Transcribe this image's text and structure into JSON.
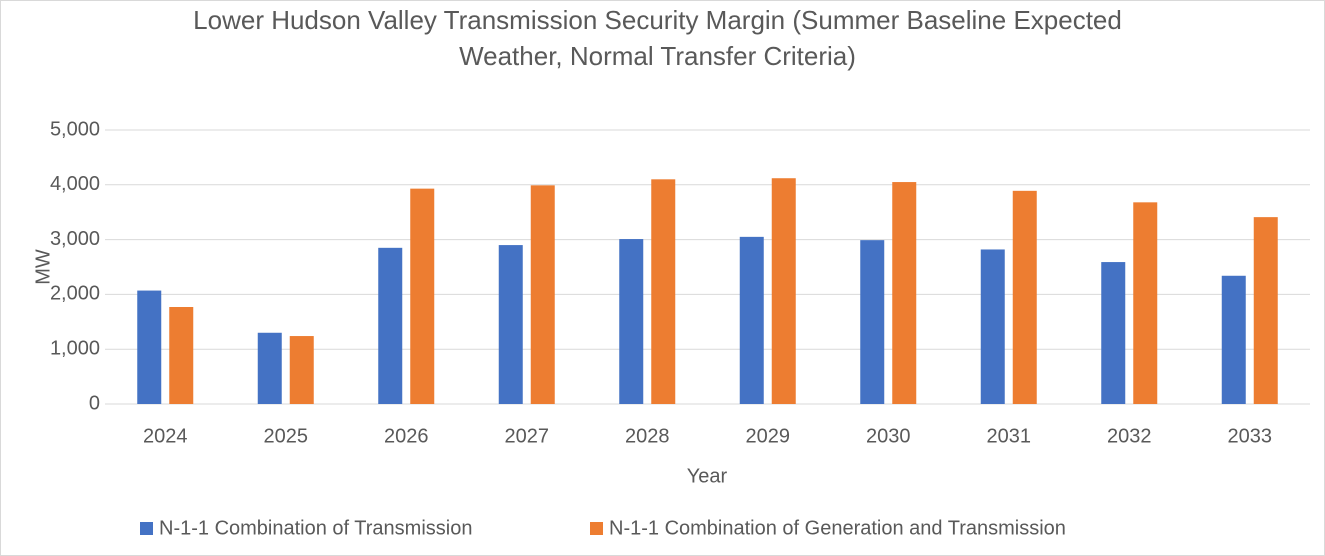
{
  "chart_data": {
    "type": "bar",
    "title": "Lower Hudson Valley Transmission Security Margin (Summer Baseline Expected Weather, Normal Transfer Criteria)",
    "x_label": "Year",
    "y_label": "MW",
    "categories": [
      "2024",
      "2025",
      "2026",
      "2027",
      "2028",
      "2029",
      "2030",
      "2031",
      "2032",
      "2033"
    ],
    "series": [
      {
        "name": "N-1-1 Combination of Transmission",
        "color": "#4472c4",
        "values": [
          2070,
          1300,
          2850,
          2900,
          3010,
          3050,
          2990,
          2820,
          2590,
          2340
        ]
      },
      {
        "name": "N-1-1 Combination of Generation and Transmission",
        "color": "#ed7d31",
        "values": [
          1770,
          1240,
          3930,
          3990,
          4100,
          4120,
          4050,
          3890,
          3680,
          3410
        ]
      }
    ],
    "ylim": [
      0,
      5000
    ],
    "yticks": [
      0,
      {
        "value": 1000,
        "label": "1,000"
      },
      {
        "value": 2000,
        "label": "2,000"
      },
      {
        "value": 3000,
        "label": "3,000"
      },
      {
        "value": 4000,
        "label": "4,000"
      },
      {
        "value": 5000,
        "label": "5,000"
      }
    ],
    "grid": true,
    "legend": "bottom"
  }
}
